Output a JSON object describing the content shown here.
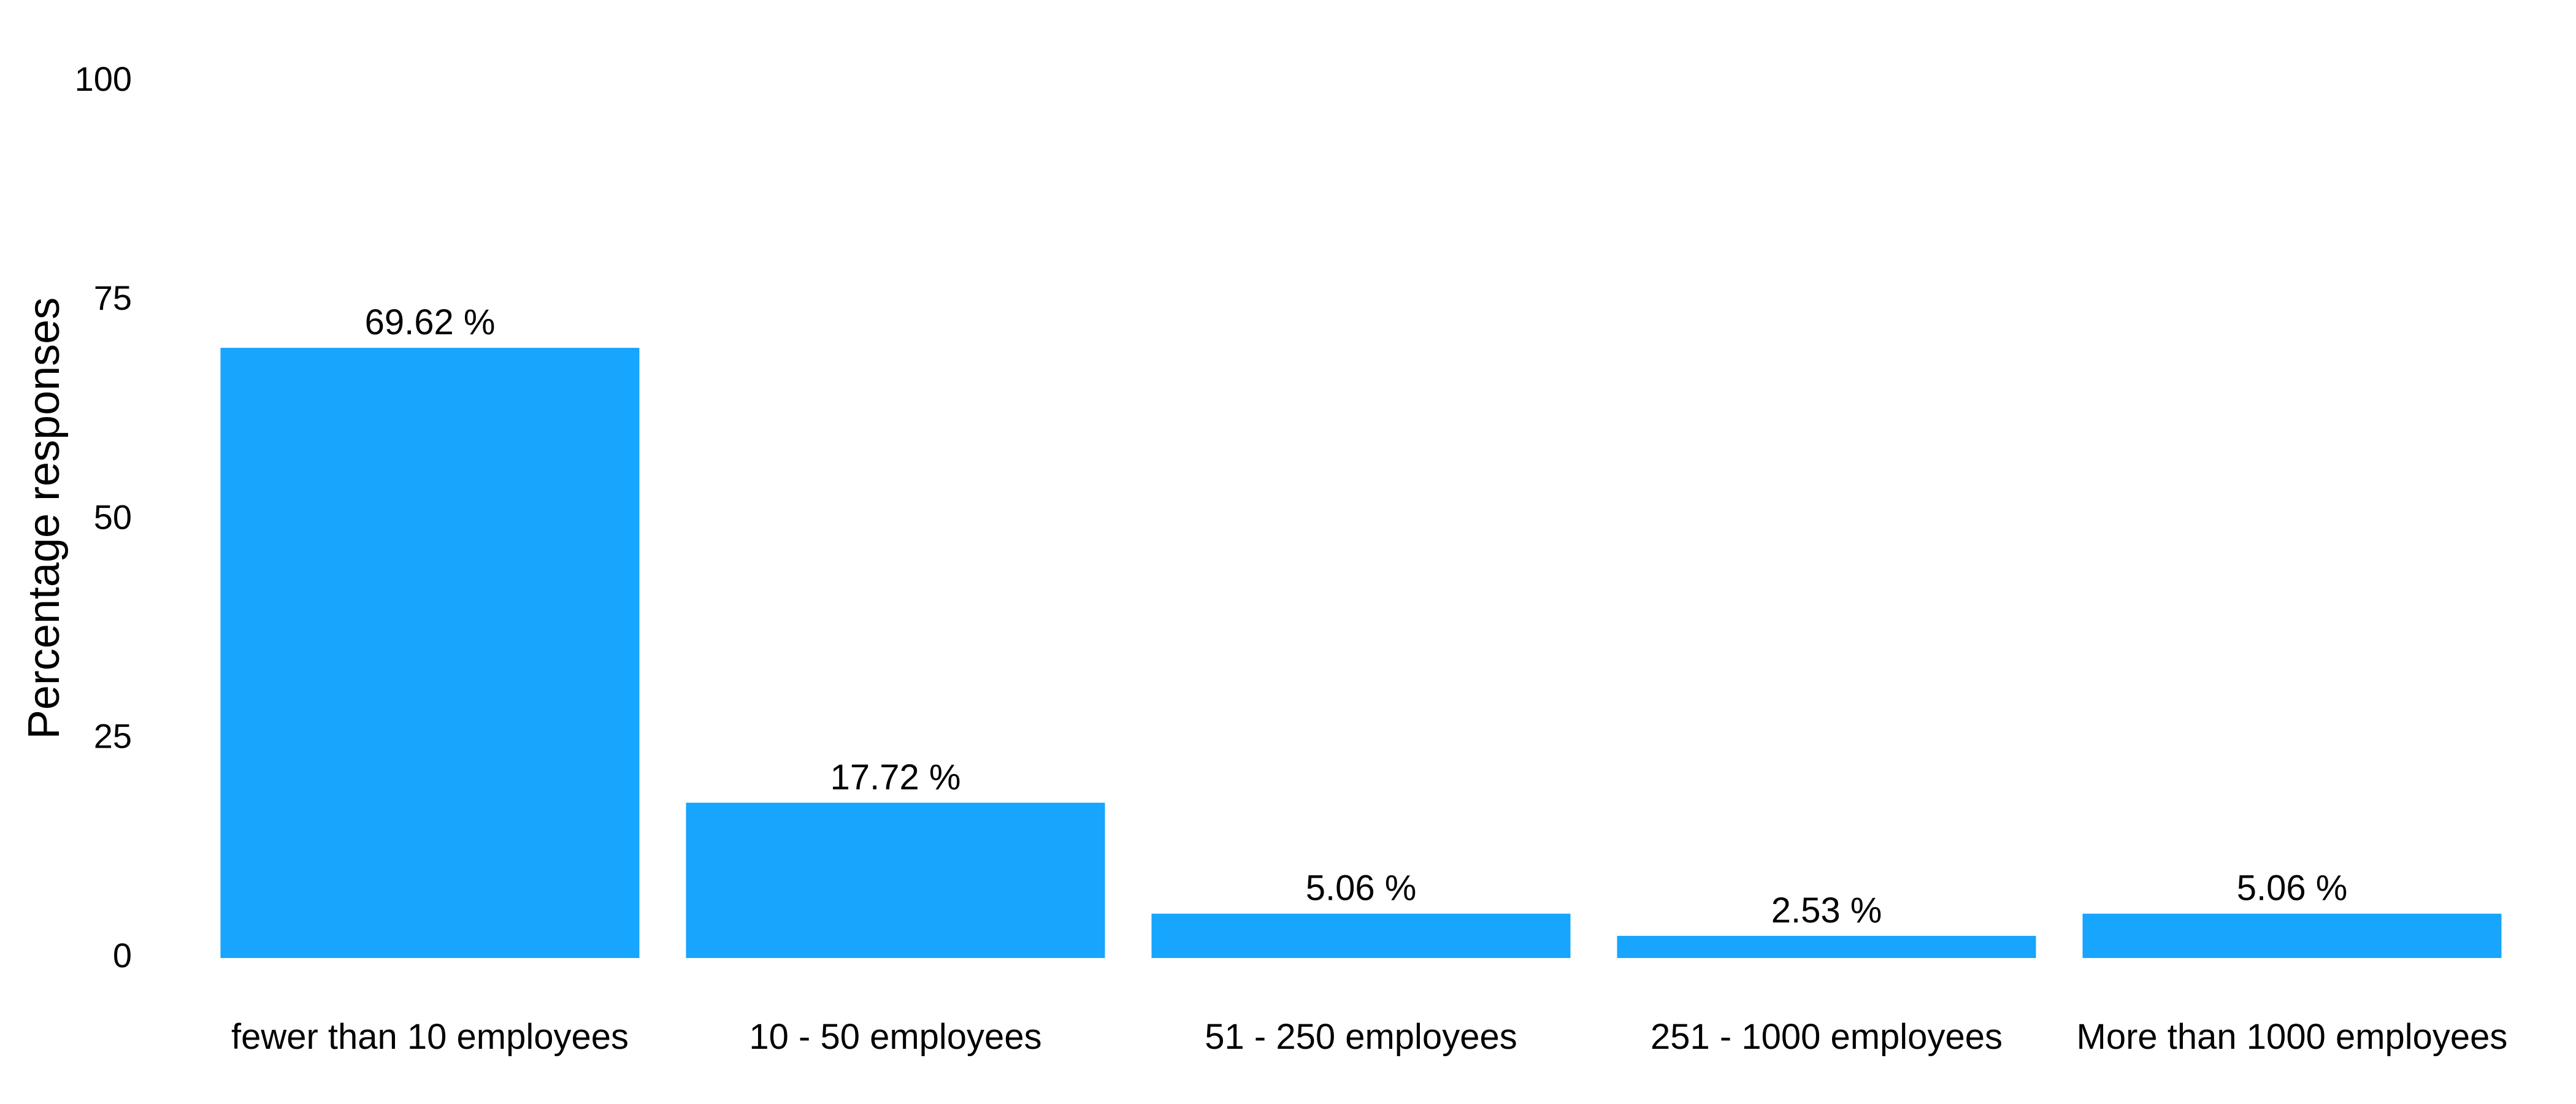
{
  "chart_data": {
    "type": "bar",
    "title": "",
    "xlabel": "",
    "ylabel": "Percentage responses",
    "ylim": [
      0,
      100
    ],
    "yticks": [
      0,
      25,
      50,
      75,
      100
    ],
    "grid": false,
    "bar_color": "#17a5fe",
    "categories": [
      "fewer than 10 employees",
      "10 - 50 employees",
      "51 - 250 employees",
      "251 - 1000 employees",
      "More than 1000 employees"
    ],
    "values": [
      69.62,
      17.72,
      5.06,
      2.53,
      5.06
    ],
    "data_labels": [
      "69.62 %",
      "17.72 %",
      "5.06 %",
      "2.53 %",
      "5.06 %"
    ]
  }
}
